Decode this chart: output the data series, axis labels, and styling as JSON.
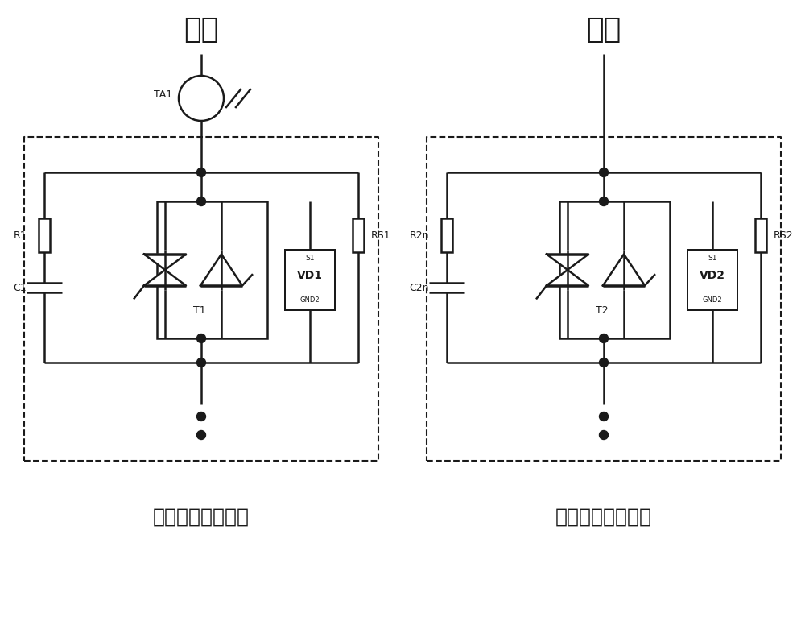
{
  "bg_color": "#ffffff",
  "line_color": "#1a1a1a",
  "line_width": 1.8,
  "title1": "进线",
  "title2": "出线",
  "label_module1": "第一电压检测模块",
  "label_module2": "第二电压检测模块",
  "label_R1": "R1",
  "label_C1": "C1",
  "label_RS1": "RS1",
  "label_T1": "T1",
  "label_VD1_top": "S1",
  "label_VD1_mid": "VD1",
  "label_VD1_bot": "GND2",
  "label_TA1": "TA1",
  "label_R2n": "R2n",
  "label_C2n": "C2n",
  "label_RS2": "RS2",
  "label_T2": "T2",
  "label_VD2_top": "S1",
  "label_VD2_mid": "VD2",
  "label_VD2_bot": "GND2"
}
